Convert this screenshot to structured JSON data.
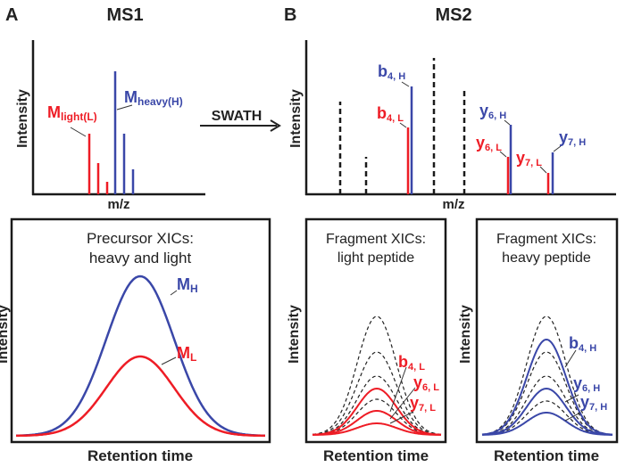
{
  "colors": {
    "light": "#ee1c25",
    "heavy": "#3a47a8",
    "axis": "#1a1a1a"
  },
  "panel_a": {
    "letter": "A",
    "title": "MS1",
    "ylabel": "Intensity",
    "xlabel": "m/z",
    "label_light_main": "M",
    "label_light_sub": "light(L)",
    "label_heavy_main": "M",
    "label_heavy_sub": "heavy(H)"
  },
  "arrow_label": "SWATH",
  "panel_b": {
    "letter": "B",
    "title": "MS2",
    "ylabel": "Intensity",
    "xlabel": "m/z",
    "labels": {
      "b4h": [
        "b",
        "4, H"
      ],
      "b4l": [
        "b",
        "4, L"
      ],
      "y6h": [
        "y",
        "6, H"
      ],
      "y6l": [
        "y",
        "6, L"
      ],
      "y7h": [
        "y",
        "7, H"
      ],
      "y7l": [
        "y",
        "7, L"
      ]
    }
  },
  "xic_precursor": {
    "title1": "Precursor XICs:",
    "title2": "heavy and light",
    "ylabel": "Intensity",
    "xlabel": "Retention time",
    "label_h_main": "M",
    "label_h_sub": "H",
    "label_l_main": "M",
    "label_l_sub": "L"
  },
  "xic_light": {
    "title1": "Fragment XICs:",
    "title2": "light peptide",
    "ylabel": "Intensity",
    "xlabel": "Retention time",
    "labels": [
      [
        "b",
        "4, L"
      ],
      [
        "y",
        "6, L"
      ],
      [
        "y",
        "7, L"
      ]
    ]
  },
  "xic_heavy": {
    "title1": "Fragment XICs:",
    "title2": "heavy peptide",
    "ylabel": "Intensity",
    "xlabel": "Retention time",
    "labels": [
      [
        "b",
        "4, H"
      ],
      [
        "y",
        "6, H"
      ],
      [
        "y",
        "7, H"
      ]
    ]
  }
}
